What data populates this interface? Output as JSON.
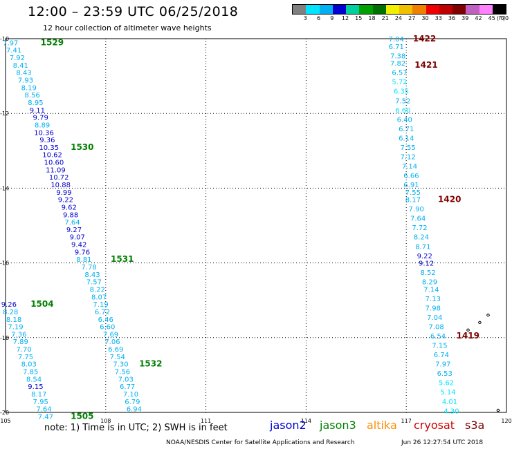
{
  "header": {
    "title": "12:00 – 23:59 UTC 06/25/2018",
    "subtitle": "12 hour collection of altimeter wave heights"
  },
  "legend": {
    "unit_label": "(ft)",
    "labels": [
      "3",
      "6",
      "9",
      "12",
      "15",
      "18",
      "21",
      "24",
      "27",
      "30",
      "33",
      "36",
      "39",
      "42",
      "45",
      "70"
    ],
    "colors": [
      "#808080",
      "#00e5ff",
      "#00b0f0",
      "#0000d0",
      "#00d0a0",
      "#00a000",
      "#007000",
      "#f0f000",
      "#f0c000",
      "#f08000",
      "#f00000",
      "#c00000",
      "#800000",
      "#c060c0",
      "#ff80ff",
      "#000000"
    ]
  },
  "footer": {
    "note": "note:  1) Time is in UTC; 2) SWH is in feet",
    "credit": "NOAA/NESDIS Center for Satellite Applications and Research",
    "timestamp": "Jun 26 12:27:54 UTC 2018"
  },
  "satellites": [
    {
      "name": "jason2",
      "color": "#0000cc"
    },
    {
      "name": "jason3",
      "color": "#008000"
    },
    {
      "name": "altika",
      "color": "#ff8c00"
    },
    {
      "name": "cryosat",
      "color": "#cc0000"
    },
    {
      "name": "s3a",
      "color": "#800000"
    }
  ],
  "chart_data": {
    "type": "scatter",
    "xlim": [
      105,
      120
    ],
    "ylim": [
      -20,
      -10
    ],
    "x_ticks": [
      "105",
      "108",
      "111",
      "114",
      "117",
      "120"
    ],
    "y_ticks": [
      "-10",
      "-12",
      "-14",
      "-16",
      "-18",
      "-20"
    ],
    "grid": true,
    "passes": [
      {
        "label": "1529",
        "label_color": "#008000",
        "label_x": 106.05,
        "label_y": -10.1,
        "points": [
          {
            "x": 105.15,
            "y": -10.1,
            "v": "7.97",
            "c": "#00b0f0"
          },
          {
            "x": 105.25,
            "y": -10.3,
            "v": "7.41",
            "c": "#00b0f0"
          },
          {
            "x": 105.35,
            "y": -10.5,
            "v": "7.92",
            "c": "#00b0f0"
          },
          {
            "x": 105.45,
            "y": -10.7,
            "v": "8.41",
            "c": "#00b0f0"
          },
          {
            "x": 105.55,
            "y": -10.9,
            "v": "8.43",
            "c": "#00b0f0"
          },
          {
            "x": 105.6,
            "y": -11.1,
            "v": "7.93",
            "c": "#00b0f0"
          },
          {
            "x": 105.7,
            "y": -11.3,
            "v": "8.19",
            "c": "#00b0f0"
          },
          {
            "x": 105.8,
            "y": -11.5,
            "v": "8.56",
            "c": "#00b0f0"
          },
          {
            "x": 105.9,
            "y": -11.7,
            "v": "8.95",
            "c": "#00b0f0"
          },
          {
            "x": 105.95,
            "y": -11.9,
            "v": "9.11",
            "c": "#0000d0"
          },
          {
            "x": 106.05,
            "y": -12.1,
            "v": "9.79",
            "c": "#0000d0"
          },
          {
            "x": 106.1,
            "y": -12.3,
            "v": "8.89",
            "c": "#00b0f0"
          },
          {
            "x": 106.15,
            "y": -12.5,
            "v": "10.36",
            "c": "#0000d0"
          },
          {
            "x": 106.25,
            "y": -12.7,
            "v": "9.36",
            "c": "#0000d0"
          },
          {
            "x": 106.3,
            "y": -12.9,
            "v": "10.35",
            "c": "#0000d0"
          },
          {
            "x": 106.4,
            "y": -13.1,
            "v": "10.62",
            "c": "#0000d0"
          },
          {
            "x": 106.45,
            "y": -13.3,
            "v": "10.60",
            "c": "#0000d0"
          },
          {
            "x": 106.5,
            "y": -13.5,
            "v": "11.09",
            "c": "#0000d0"
          },
          {
            "x": 106.6,
            "y": -13.7,
            "v": "10.72",
            "c": "#0000d0"
          },
          {
            "x": 106.65,
            "y": -13.9,
            "v": "10.88",
            "c": "#0000d0"
          },
          {
            "x": 106.75,
            "y": -14.1,
            "v": "9.99",
            "c": "#0000d0"
          },
          {
            "x": 106.8,
            "y": -14.3,
            "v": "9.22",
            "c": "#0000d0"
          },
          {
            "x": 106.9,
            "y": -14.5,
            "v": "9.62",
            "c": "#0000d0"
          },
          {
            "x": 106.95,
            "y": -14.7,
            "v": "9.88",
            "c": "#0000d0"
          },
          {
            "x": 107.0,
            "y": -14.9,
            "v": "7.64",
            "c": "#00b0f0"
          },
          {
            "x": 107.05,
            "y": -15.1,
            "v": "9.27",
            "c": "#0000d0"
          },
          {
            "x": 107.15,
            "y": -15.3,
            "v": "9.07",
            "c": "#0000d0"
          },
          {
            "x": 107.2,
            "y": -15.5,
            "v": "9.42",
            "c": "#0000d0"
          },
          {
            "x": 107.3,
            "y": -15.7,
            "v": "9.76",
            "c": "#0000d0"
          },
          {
            "x": 107.35,
            "y": -15.9,
            "v": "8.81",
            "c": "#00b0f0"
          }
        ]
      },
      {
        "label": "1530",
        "label_color": "#008000",
        "label_x": 106.95,
        "label_y": -12.9,
        "points": []
      },
      {
        "label": "1531",
        "label_color": "#008000",
        "label_x": 108.15,
        "label_y": -15.9,
        "points": [
          {
            "x": 107.5,
            "y": -16.1,
            "v": "7.78",
            "c": "#00b0f0"
          },
          {
            "x": 107.6,
            "y": -16.3,
            "v": "8.43",
            "c": "#00b0f0"
          },
          {
            "x": 107.65,
            "y": -16.5,
            "v": "7.57",
            "c": "#00b0f0"
          },
          {
            "x": 107.75,
            "y": -16.7,
            "v": "8.22",
            "c": "#00b0f0"
          },
          {
            "x": 107.8,
            "y": -16.9,
            "v": "8.07",
            "c": "#00b0f0"
          },
          {
            "x": 107.85,
            "y": -17.1,
            "v": "7.19",
            "c": "#00b0f0"
          },
          {
            "x": 107.9,
            "y": -17.3,
            "v": "6.72",
            "c": "#00b0f0"
          },
          {
            "x": 108.0,
            "y": -17.5,
            "v": "6.46",
            "c": "#00b0f0"
          },
          {
            "x": 108.05,
            "y": -17.7,
            "v": "6.60",
            "c": "#00b0f0"
          },
          {
            "x": 108.15,
            "y": -17.9,
            "v": "7.69",
            "c": "#00b0f0"
          },
          {
            "x": 108.2,
            "y": -18.1,
            "v": "7.06",
            "c": "#00b0f0"
          },
          {
            "x": 108.3,
            "y": -18.3,
            "v": "6.69",
            "c": "#00b0f0"
          },
          {
            "x": 108.35,
            "y": -18.5,
            "v": "7.54",
            "c": "#00b0f0"
          },
          {
            "x": 108.45,
            "y": -18.7,
            "v": "7.30",
            "c": "#00b0f0"
          },
          {
            "x": 108.5,
            "y": -18.9,
            "v": "7.56",
            "c": "#00b0f0"
          },
          {
            "x": 108.6,
            "y": -19.1,
            "v": "7.03",
            "c": "#00b0f0"
          },
          {
            "x": 108.65,
            "y": -19.3,
            "v": "6.77",
            "c": "#00b0f0"
          },
          {
            "x": 108.75,
            "y": -19.5,
            "v": "7.10",
            "c": "#00b0f0"
          },
          {
            "x": 108.8,
            "y": -19.7,
            "v": "6.79",
            "c": "#00b0f0"
          },
          {
            "x": 108.85,
            "y": -19.9,
            "v": "6.94",
            "c": "#00b0f0"
          }
        ]
      },
      {
        "label": "1532",
        "label_color": "#008000",
        "label_x": 109.0,
        "label_y": -18.7,
        "points": []
      },
      {
        "label": "1504",
        "label_color": "#008000",
        "label_x": 105.75,
        "label_y": -17.1,
        "points": [
          {
            "x": 105.1,
            "y": -17.1,
            "v": "9.26",
            "c": "#0000d0"
          },
          {
            "x": 105.15,
            "y": -17.3,
            "v": "8.28",
            "c": "#00b0f0"
          },
          {
            "x": 105.25,
            "y": -17.5,
            "v": "8.18",
            "c": "#00b0f0"
          },
          {
            "x": 105.3,
            "y": -17.7,
            "v": "7.19",
            "c": "#00b0f0"
          },
          {
            "x": 105.4,
            "y": -17.9,
            "v": "7.36",
            "c": "#00b0f0"
          },
          {
            "x": 105.45,
            "y": -18.1,
            "v": "7.89",
            "c": "#00b0f0"
          },
          {
            "x": 105.55,
            "y": -18.3,
            "v": "7.70",
            "c": "#00b0f0"
          },
          {
            "x": 105.6,
            "y": -18.5,
            "v": "7.75",
            "c": "#00b0f0"
          },
          {
            "x": 105.7,
            "y": -18.7,
            "v": "8.03",
            "c": "#00b0f0"
          },
          {
            "x": 105.75,
            "y": -18.9,
            "v": "7.85",
            "c": "#00b0f0"
          },
          {
            "x": 105.85,
            "y": -19.1,
            "v": "8.54",
            "c": "#00b0f0"
          },
          {
            "x": 105.9,
            "y": -19.3,
            "v": "9.15",
            "c": "#0000d0"
          },
          {
            "x": 106.0,
            "y": -19.5,
            "v": "8.17",
            "c": "#00b0f0"
          },
          {
            "x": 106.05,
            "y": -19.7,
            "v": "7.95",
            "c": "#00b0f0"
          },
          {
            "x": 106.15,
            "y": -19.9,
            "v": "7.64",
            "c": "#00b0f0"
          },
          {
            "x": 106.2,
            "y": -20.1,
            "v": "7.47",
            "c": "#00b0f0"
          }
        ]
      },
      {
        "label": "1505",
        "label_color": "#008000",
        "label_x": 106.95,
        "label_y": -20.1,
        "points": []
      },
      {
        "label": "1422",
        "label_color": "#800000",
        "label_x": 117.2,
        "label_y": -10.0,
        "points": [
          {
            "x": 116.7,
            "y": -10.0,
            "v": "7.04",
            "c": "#00b0f0"
          },
          {
            "x": 116.7,
            "y": -10.2,
            "v": "6.71",
            "c": "#00b0f0"
          },
          {
            "x": 116.75,
            "y": -10.45,
            "v": "7.38",
            "c": "#00b0f0"
          },
          {
            "x": 116.75,
            "y": -10.65,
            "v": "7.82",
            "c": "#00b0f0"
          },
          {
            "x": 116.8,
            "y": -10.9,
            "v": "6.57",
            "c": "#00b0f0"
          },
          {
            "x": 116.8,
            "y": -11.15,
            "v": "5.72",
            "c": "#00e5ff"
          },
          {
            "x": 116.85,
            "y": -11.4,
            "v": "6.35",
            "c": "#00e5ff"
          },
          {
            "x": 116.9,
            "y": -11.65,
            "v": "7.52",
            "c": "#00b0f0"
          },
          {
            "x": 116.9,
            "y": -11.9,
            "v": "6.60",
            "c": "#00e5ff"
          },
          {
            "x": 116.95,
            "y": -12.15,
            "v": "6.40",
            "c": "#00b0f0"
          },
          {
            "x": 117.0,
            "y": -12.4,
            "v": "6.71",
            "c": "#00b0f0"
          },
          {
            "x": 117.0,
            "y": -12.65,
            "v": "6.14",
            "c": "#00b0f0"
          },
          {
            "x": 117.05,
            "y": -12.9,
            "v": "7.55",
            "c": "#00b0f0"
          },
          {
            "x": 117.05,
            "y": -13.15,
            "v": "7.12",
            "c": "#00b0f0"
          },
          {
            "x": 117.1,
            "y": -13.4,
            "v": "7.14",
            "c": "#00b0f0"
          },
          {
            "x": 117.15,
            "y": -13.65,
            "v": "6.66",
            "c": "#00b0f0"
          },
          {
            "x": 117.15,
            "y": -13.9,
            "v": "6.91",
            "c": "#00b0f0"
          },
          {
            "x": 117.2,
            "y": -14.1,
            "v": "7.55",
            "c": "#00b0f0"
          }
        ]
      },
      {
        "label": "1421",
        "label_color": "#800000",
        "label_x": 117.25,
        "label_y": -10.7,
        "points": []
      },
      {
        "label": "1420",
        "label_color": "#800000",
        "label_x": 117.95,
        "label_y": -14.3,
        "points": [
          {
            "x": 117.2,
            "y": -14.3,
            "v": "8.17",
            "c": "#00b0f0"
          },
          {
            "x": 117.3,
            "y": -14.55,
            "v": "7.90",
            "c": "#00b0f0"
          },
          {
            "x": 117.35,
            "y": -14.8,
            "v": "7.64",
            "c": "#00b0f0"
          },
          {
            "x": 117.4,
            "y": -15.05,
            "v": "7.72",
            "c": "#00b0f0"
          },
          {
            "x": 117.45,
            "y": -15.3,
            "v": "8.24",
            "c": "#00b0f0"
          },
          {
            "x": 117.5,
            "y": -15.55,
            "v": "8.71",
            "c": "#00b0f0"
          },
          {
            "x": 117.55,
            "y": -15.8,
            "v": "9.22",
            "c": "#0000d0"
          },
          {
            "x": 117.6,
            "y": -16.0,
            "v": "9.12",
            "c": "#0000d0"
          },
          {
            "x": 117.65,
            "y": -16.25,
            "v": "8.52",
            "c": "#00b0f0"
          },
          {
            "x": 117.7,
            "y": -16.5,
            "v": "8.29",
            "c": "#00b0f0"
          },
          {
            "x": 117.75,
            "y": -16.7,
            "v": "7.14",
            "c": "#00b0f0"
          },
          {
            "x": 117.8,
            "y": -16.95,
            "v": "7.13",
            "c": "#00b0f0"
          },
          {
            "x": 117.8,
            "y": -17.2,
            "v": "7.98",
            "c": "#00b0f0"
          },
          {
            "x": 117.85,
            "y": -17.45,
            "v": "7.04",
            "c": "#00b0f0"
          },
          {
            "x": 117.9,
            "y": -17.7,
            "v": "7.08",
            "c": "#00b0f0"
          },
          {
            "x": 117.95,
            "y": -17.95,
            "v": "6.54",
            "c": "#00b0f0"
          },
          {
            "x": 118.0,
            "y": -18.2,
            "v": "7.15",
            "c": "#00b0f0"
          },
          {
            "x": 118.05,
            "y": -18.45,
            "v": "6.74",
            "c": "#00b0f0"
          },
          {
            "x": 118.1,
            "y": -18.7,
            "v": "7.97",
            "c": "#00b0f0"
          },
          {
            "x": 118.15,
            "y": -18.95,
            "v": "6.53",
            "c": "#00b0f0"
          },
          {
            "x": 118.2,
            "y": -19.2,
            "v": "5.62",
            "c": "#00e5ff"
          },
          {
            "x": 118.25,
            "y": -19.45,
            "v": "5.14",
            "c": "#00e5ff"
          },
          {
            "x": 118.3,
            "y": -19.7,
            "v": "4.01",
            "c": "#00e5ff"
          },
          {
            "x": 118.35,
            "y": -19.95,
            "v": "4.30",
            "c": "#00e5ff"
          }
        ]
      },
      {
        "label": "1419",
        "label_color": "#800000",
        "label_x": 118.5,
        "label_y": -17.95,
        "points": []
      }
    ]
  }
}
